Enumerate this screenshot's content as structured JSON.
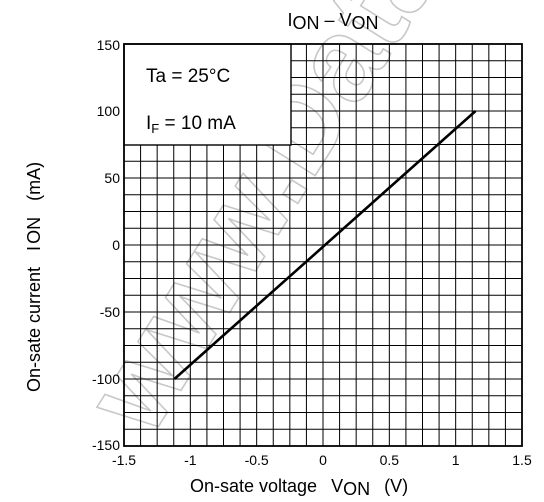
{
  "watermark_text": "www.DataSheet4U.com",
  "chart_data": {
    "type": "line",
    "title": {
      "main": "I",
      "sub": "ON",
      "sep": " – V",
      "sub2": "ON"
    },
    "xlabel": {
      "main": "On-sate voltage",
      "sym": "V",
      "sub": "ON",
      "unit": "(V)"
    },
    "ylabel": {
      "main": "On-sate current",
      "sym": "I",
      "sub": "ON",
      "unit": "(mA)"
    },
    "xlim": [
      -1.5,
      1.5
    ],
    "ylim": [
      -150,
      150
    ],
    "x_ticks": [
      -1.5,
      -1,
      -0.5,
      0,
      0.5,
      1,
      1.5
    ],
    "x_tick_labels": [
      "-1.5",
      "-1",
      "-0.5",
      "0",
      "0.5",
      "1",
      "1.5"
    ],
    "y_ticks": [
      150,
      100,
      50,
      0,
      -50,
      -100,
      -150
    ],
    "y_tick_labels": [
      "150",
      "100",
      "50",
      "0",
      "-50",
      "-100",
      "-150"
    ],
    "x_grid_step": 0.125,
    "y_grid_step": 12.5,
    "grid": true,
    "legend": null,
    "annotations": [
      {
        "text": "Ta = 25°C"
      },
      {
        "sym": "I",
        "sub": "F",
        "text": " = 10 mA"
      }
    ],
    "series": [
      {
        "x": [
          -1.12,
          1.15
        ],
        "y": [
          -100,
          100
        ]
      }
    ],
    "colors": {
      "line": "#000000",
      "grid": "#000000",
      "background": "#ffffff"
    }
  }
}
